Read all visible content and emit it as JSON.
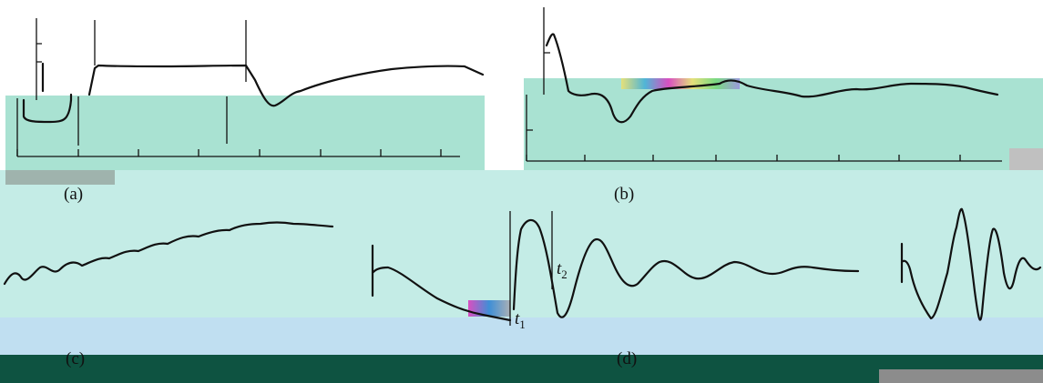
{
  "panels": [
    {
      "id": "a",
      "label": "(a)"
    },
    {
      "id": "b",
      "label": "(b)"
    },
    {
      "id": "c",
      "label": "(c)"
    },
    {
      "id": "d",
      "label": "(d)"
    }
  ],
  "markers": {
    "t1": {
      "symbol": "t",
      "subscript": "1"
    },
    "t2": {
      "symbol": "t",
      "subscript": "2"
    }
  },
  "colors": {
    "ink": "#111111",
    "band_green": "#a9e2d2",
    "band_teal": "#c4ece6",
    "band_blue": "#c0dff1",
    "band_dark": "#0e5341"
  }
}
